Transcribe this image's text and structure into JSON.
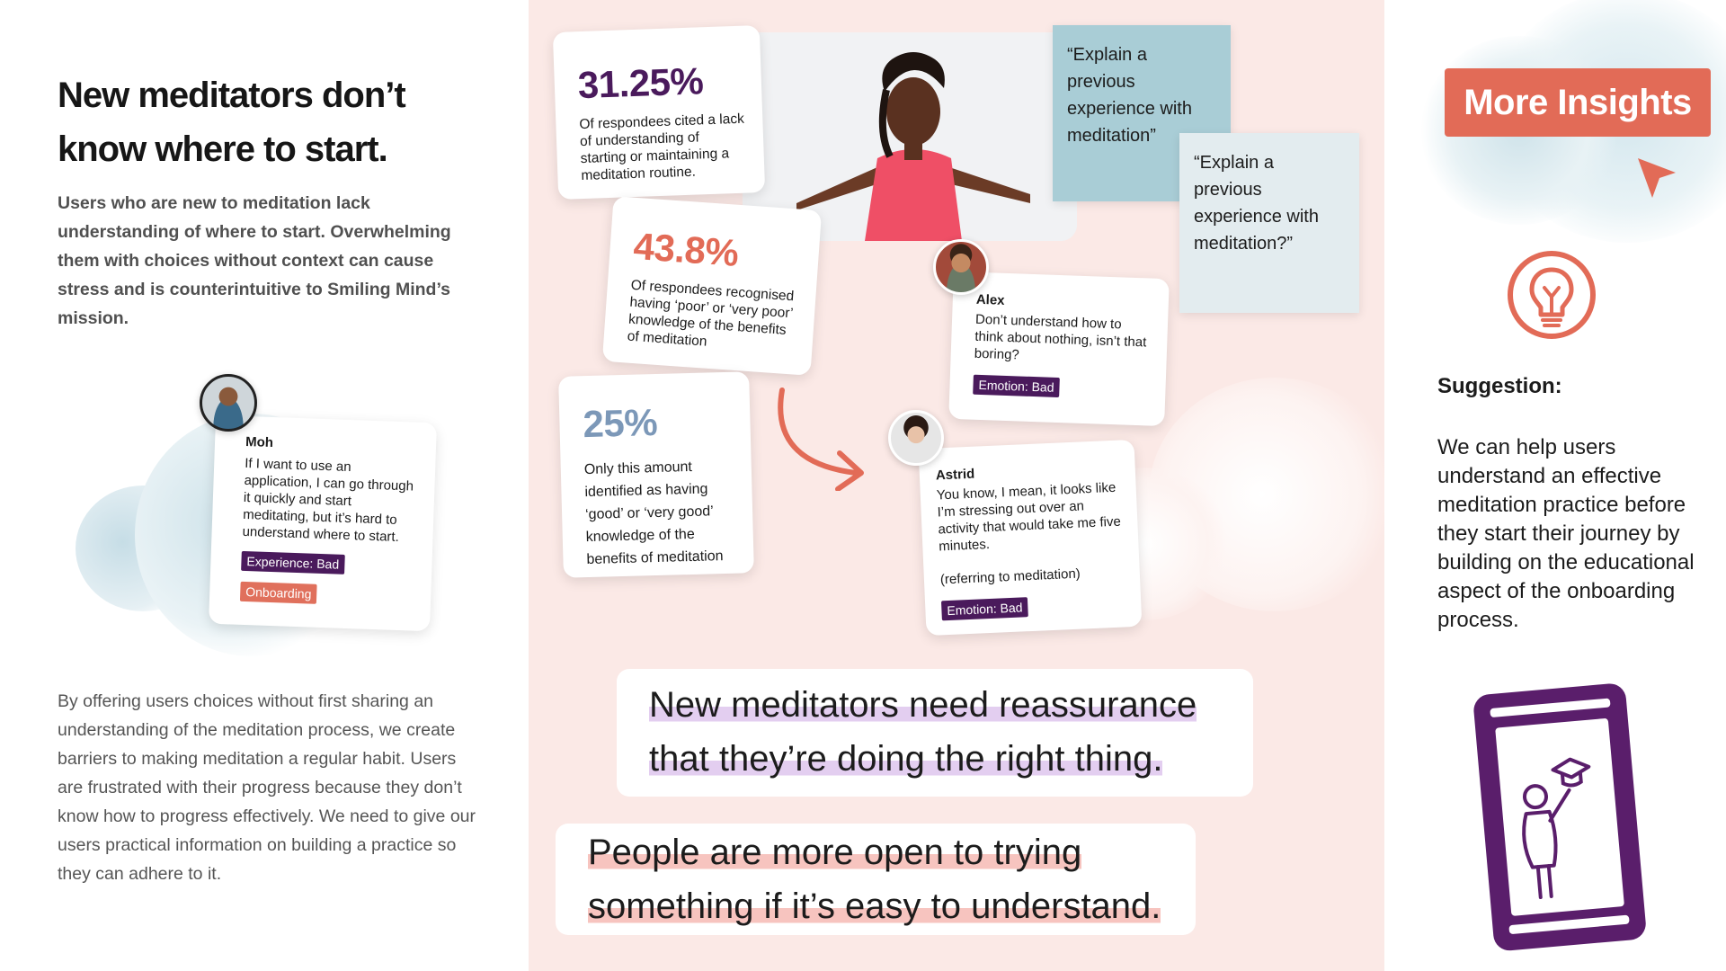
{
  "left": {
    "headline": "New meditators don’t know where to start.",
    "intro": "Users who are new to meditation lack understanding of where to start. Overwhelming them with choices without context can cause stress and is counterintuitive to Smiling Mind’s mission.",
    "body": "By offering users choices without first sharing an understanding of the meditation process, we create barriers to making meditation a regular habit. Users are frustrated with their progress because they don’t know how to progress effectively. We need to give our users practical information on building a practice so they can adhere to it.",
    "moh_card": {
      "name": "Moh",
      "quote": "If I want to use an application, I can go through it quickly and start meditating, but it’s hard to understand where to start.",
      "tag1": "Experience: Bad",
      "tag2": "Onboarding"
    }
  },
  "middle": {
    "stats": [
      {
        "value": "31.25%",
        "text": "Of respondees cited a lack of understanding of starting or maintaining a meditation routine."
      },
      {
        "value": "43.8%",
        "text": "Of respondees recognised having ‘poor’ or ‘very poor’ knowledge of the benefits of meditation"
      },
      {
        "value": "25%",
        "text": "Only this amount identified as having ‘good’ or ‘very good’ knowledge of the benefits of  meditation"
      }
    ],
    "sticky1": "“Explain a previous experience with meditation”",
    "sticky2": "“Explain a previous experience with meditation?”",
    "alex_card": {
      "name": "Alex",
      "quote": "Don’t understand how to think about nothing, isn’t that boring?",
      "tag": "Emotion: Bad"
    },
    "astrid_card": {
      "name": "Astrid",
      "quote": "You know, I mean, it looks like I’m stressing out over an activity that would take me five minutes.",
      "note": "(referring to meditation)",
      "tag": "Emotion: Bad"
    },
    "banner1": [
      "New meditators need reassurance",
      "that they’re doing the right thing."
    ],
    "banner2": [
      "People are more open to trying",
      "something if it’s easy to understand."
    ]
  },
  "right": {
    "button": "More Insights",
    "suggestion_title": "Suggestion:",
    "suggestion_body": "We can help users understand an effective meditation practice before they start their journey by building on the educational aspect of the onboarding process."
  },
  "colors": {
    "accent_coral": "#e26b57",
    "purple": "#4a1a5c",
    "stat_purple": "#4a1a5c",
    "stat_coral": "#e26b57",
    "stat_blue": "#7c98b8",
    "mid_background": "#fbe9e6",
    "sticky_blue": "#a9cdd6",
    "sticky_light": "#e3ecef"
  }
}
